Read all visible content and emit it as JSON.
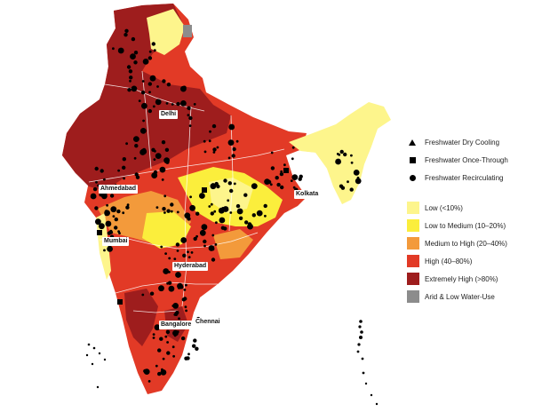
{
  "colors": {
    "low": "#fdf58c",
    "low_medium": "#fbee3c",
    "medium_high": "#f39a3b",
    "high": "#e23a26",
    "extremely_high": "#9e1d1d",
    "arid": "#8c8c8c",
    "point": "#000000"
  },
  "cities": {
    "delhi": "Delhi",
    "ahmedabad": "Ahmedabad",
    "mumbai": "Mumbai",
    "hyderabad": "Hyderabad",
    "kolkata": "Kolkata",
    "bangalore": "Bangalore",
    "chennai": "Chennai"
  },
  "legend": {
    "symbols": [
      {
        "label": "Freshwater Dry Cooling",
        "icon": "triangle-icon"
      },
      {
        "label": "Freshwater Once-Through",
        "icon": "square-icon"
      },
      {
        "label": "Freshwater Recirculating",
        "icon": "circle-icon"
      }
    ],
    "classes": [
      {
        "label": "Low (<10%)",
        "color": "#fdf58c"
      },
      {
        "label": "Low to Medium (10–20%)",
        "color": "#fbee3c"
      },
      {
        "label": "Medium to High (20–40%)",
        "color": "#f39a3b"
      },
      {
        "label": "High (40–80%)",
        "color": "#e23a26"
      },
      {
        "label": "Extremely High (>80%)",
        "color": "#9e1d1d"
      },
      {
        "label": "Arid & Low Water-Use",
        "color": "#8c8c8c"
      }
    ]
  }
}
